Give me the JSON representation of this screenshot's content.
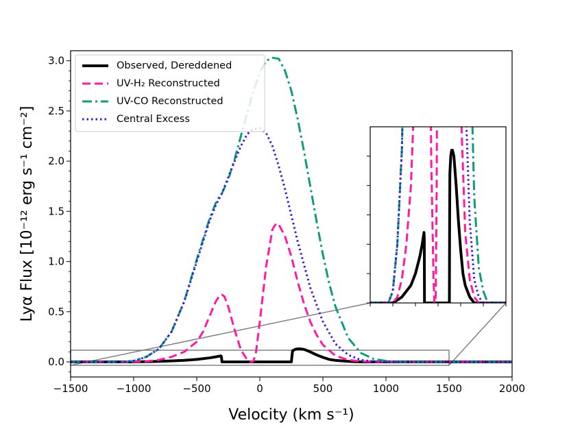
{
  "chart_data": {
    "type": "line",
    "xlabel": "Velocity (km s⁻¹)",
    "ylabel": "Lyα Flux [10⁻¹² erg s⁻¹ cm⁻²]",
    "xlim": [
      -1500,
      2000
    ],
    "ylim": [
      -0.15,
      3.1
    ],
    "xticks": [
      -1500,
      -1000,
      -500,
      0,
      500,
      1000,
      1500,
      2000
    ],
    "yticks": [
      0.0,
      0.5,
      1.0,
      1.5,
      2.0,
      2.5,
      3.0
    ],
    "xtick_labels": [
      "−1500",
      "−1000",
      "−500",
      "0",
      "500",
      "1000",
      "1500",
      "2000"
    ],
    "ytick_labels": [
      "0.0",
      "0.5",
      "1.0",
      "1.5",
      "2.0",
      "2.5",
      "3.0"
    ],
    "legend_position": "top-left",
    "series": [
      {
        "name": "Observed, Dereddened",
        "color": "#000000",
        "style": "solid",
        "x": [
          -1500,
          -1000,
          -800,
          -600,
          -500,
          -400,
          -350,
          -330,
          -310,
          -305,
          -300,
          250,
          255,
          260,
          280,
          300,
          320,
          350,
          400,
          450,
          500,
          550,
          600,
          700,
          800,
          2000
        ],
        "y": [
          0.0,
          0.0,
          0.005,
          0.015,
          0.025,
          0.04,
          0.05,
          0.055,
          0.06,
          0.055,
          0.0,
          0.0,
          0.06,
          0.11,
          0.125,
          0.13,
          0.13,
          0.125,
          0.1,
          0.07,
          0.045,
          0.025,
          0.015,
          0.005,
          0.0,
          0.0
        ]
      },
      {
        "name": "UV-H₂ Reconstructed",
        "color": "#ff1aa3",
        "style": "dashed",
        "x": [
          -1500,
          -1000,
          -900,
          -800,
          -700,
          -600,
          -500,
          -450,
          -400,
          -350,
          -320,
          -300,
          -280,
          -250,
          -200,
          -150,
          -100,
          -80,
          -60,
          -50,
          -30,
          0,
          50,
          100,
          130,
          150,
          200,
          250,
          300,
          350,
          400,
          450,
          500,
          600,
          700,
          800,
          900,
          1000,
          2000
        ],
        "y": [
          0.0,
          0.0,
          0.005,
          0.02,
          0.05,
          0.1,
          0.2,
          0.3,
          0.45,
          0.6,
          0.66,
          0.67,
          0.65,
          0.55,
          0.32,
          0.12,
          0.02,
          0.0,
          0.0,
          0.01,
          0.1,
          0.4,
          0.95,
          1.32,
          1.38,
          1.37,
          1.25,
          1.05,
          0.8,
          0.58,
          0.4,
          0.27,
          0.17,
          0.06,
          0.02,
          0.005,
          0.0,
          0.0,
          0.0
        ]
      },
      {
        "name": "UV-CO Reconstructed",
        "color": "#0f9a7a",
        "style": "dashdot",
        "x": [
          -1500,
          -1100,
          -1000,
          -900,
          -800,
          -700,
          -600,
          -500,
          -400,
          -350,
          -320,
          -300,
          -250,
          -200,
          -150,
          -100,
          -50,
          0,
          50,
          100,
          150,
          200,
          250,
          300,
          350,
          400,
          450,
          500,
          550,
          600,
          700,
          800,
          900,
          1000,
          1100,
          1200,
          2000
        ],
        "y": [
          0.0,
          0.0,
          0.01,
          0.05,
          0.13,
          0.3,
          0.6,
          1.02,
          1.42,
          1.58,
          1.65,
          1.68,
          1.82,
          2.02,
          2.25,
          2.48,
          2.7,
          2.88,
          3.0,
          3.03,
          3.02,
          2.9,
          2.7,
          2.42,
          2.1,
          1.75,
          1.4,
          1.07,
          0.78,
          0.55,
          0.24,
          0.09,
          0.03,
          0.01,
          0.0,
          0.0,
          0.0
        ]
      },
      {
        "name": "Central Excess",
        "color": "#3a1ad6",
        "style": "dotted",
        "x": [
          -1500,
          -1100,
          -1000,
          -900,
          -800,
          -700,
          -600,
          -500,
          -400,
          -350,
          -300,
          -250,
          -200,
          -150,
          -100,
          -50,
          0,
          50,
          100,
          150,
          200,
          250,
          300,
          400,
          500,
          600,
          700,
          800,
          900,
          1000,
          1100,
          1200,
          2000
        ],
        "y": [
          0.0,
          0.0,
          0.01,
          0.05,
          0.13,
          0.3,
          0.6,
          1.0,
          1.4,
          1.56,
          1.68,
          1.84,
          2.0,
          2.15,
          2.27,
          2.32,
          2.33,
          2.28,
          2.15,
          1.95,
          1.72,
          1.46,
          1.2,
          0.74,
          0.4,
          0.18,
          0.07,
          0.02,
          0.005,
          0.0,
          0.0,
          0.0,
          0.0
        ]
      }
    ],
    "inset": {
      "description": "zoom of low-flux region",
      "xlim": [
        -1500,
        1500
      ],
      "ylim": [
        0.0,
        0.15
      ]
    }
  }
}
